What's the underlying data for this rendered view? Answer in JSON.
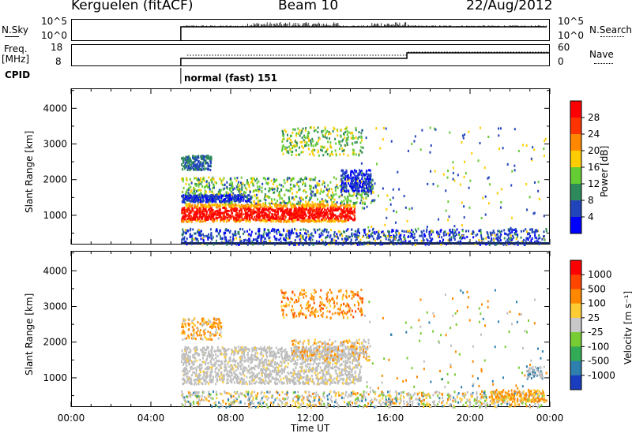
{
  "header": {
    "site": "Kerguelen (fitACF)",
    "beam": "Beam 10",
    "date": "22/Aug/2012"
  },
  "status_panels": {
    "nsky_label": "N.Sky",
    "nsky_ticks": [
      "10^5",
      "10^0"
    ],
    "nsearch_label": "N.Search",
    "freq_label_line1": "Freq.",
    "freq_label_line2": "[MHz]",
    "freq_ticks": [
      "18",
      "8"
    ],
    "nave_ticks": [
      "60",
      "0"
    ],
    "nave_label": "Nave",
    "cpid_label": "CPID",
    "cpid_text": "normal (fast) 151",
    "start_time": "05:30",
    "freq_change_time": "16:50"
  },
  "chart_data": [
    {
      "type": "heatmap",
      "name": "power",
      "ylabel": "Slant Range [km]",
      "xlabel": "",
      "yticks": [
        1000,
        2000,
        3000,
        4000
      ],
      "ylim": [
        180,
        4560
      ],
      "xlim": [
        "00:00",
        "24:00"
      ],
      "colorbar_label": "Power [dB]",
      "colorbar_ticks": [
        4,
        8,
        12,
        16,
        20,
        24,
        28
      ],
      "colorbar_colors": [
        "#0000ff",
        "#2244bb",
        "#2e8a5a",
        "#66cc33",
        "#ffcc00",
        "#ff8800",
        "#ff3300",
        "#ff0000"
      ]
    },
    {
      "type": "heatmap",
      "name": "velocity",
      "ylabel": "Slant Range [km]",
      "xlabel": "Time UT",
      "yticks": [
        1000,
        2000,
        3000,
        4000
      ],
      "ylim": [
        180,
        4560
      ],
      "xticks": [
        "00:00",
        "04:00",
        "08:00",
        "12:00",
        "16:00",
        "20:00",
        "00:00"
      ],
      "xlim": [
        "00:00",
        "24:00"
      ],
      "colorbar_label": "Velocity [m s⁻¹]",
      "colorbar_ticks": [
        "1000",
        "500",
        "100",
        "25",
        "-25",
        "-100",
        "-500",
        "-1000"
      ],
      "colorbar_colors": [
        "#1a3dbf",
        "#2e7fae",
        "#33aa55",
        "#77cc33",
        "#c8c8c8",
        "#ffcc33",
        "#ff8800",
        "#ff4400",
        "#ff0000"
      ]
    }
  ],
  "colors": {
    "ground_scatter": "#bebebe",
    "axis": "#000000"
  }
}
